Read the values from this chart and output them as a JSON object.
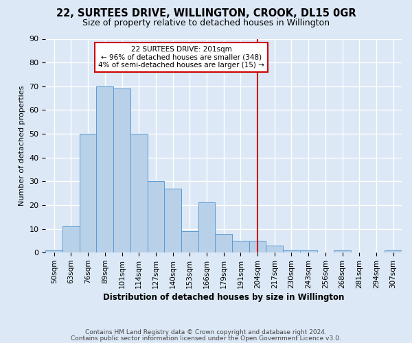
{
  "title": "22, SURTEES DRIVE, WILLINGTON, CROOK, DL15 0GR",
  "subtitle": "Size of property relative to detached houses in Willington",
  "xlabel": "Distribution of detached houses by size in Willington",
  "ylabel": "Number of detached properties",
  "bar_labels": [
    "50sqm",
    "63sqm",
    "76sqm",
    "89sqm",
    "101sqm",
    "114sqm",
    "127sqm",
    "140sqm",
    "153sqm",
    "166sqm",
    "179sqm",
    "191sqm",
    "204sqm",
    "217sqm",
    "230sqm",
    "243sqm",
    "256sqm",
    "268sqm",
    "281sqm",
    "294sqm",
    "307sqm"
  ],
  "bar_values": [
    1,
    11,
    50,
    70,
    69,
    50,
    30,
    27,
    9,
    21,
    8,
    5,
    5,
    3,
    1,
    1,
    0,
    1,
    0,
    0,
    1
  ],
  "bar_color": "#b8d0e8",
  "bar_edge_color": "#5b9bd5",
  "ylim": [
    0,
    90
  ],
  "yticks": [
    0,
    10,
    20,
    30,
    40,
    50,
    60,
    70,
    80,
    90
  ],
  "red_line_index": 12,
  "red_line_color": "#cc0000",
  "annotation_text": "22 SURTEES DRIVE: 201sqm\n← 96% of detached houses are smaller (348)\n4% of semi-detached houses are larger (15) →",
  "annotation_box_color": "#ffffff",
  "annotation_box_edge_color": "#cc0000",
  "background_color": "#dce8f5",
  "grid_color": "#ffffff",
  "footer_line1": "Contains HM Land Registry data © Crown copyright and database right 2024.",
  "footer_line2": "Contains public sector information licensed under the Open Government Licence v3.0."
}
